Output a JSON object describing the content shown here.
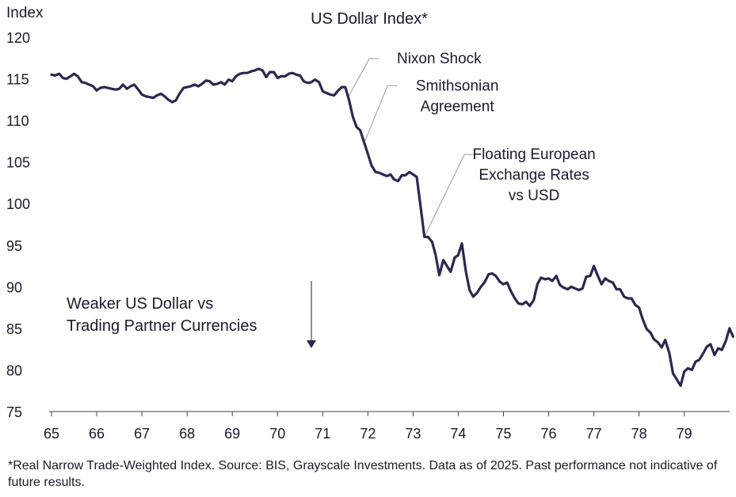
{
  "chart_data": {
    "type": "line",
    "title": "US Dollar Index*",
    "ylabel": "Index",
    "xlabel": "",
    "ylim": [
      75,
      120
    ],
    "yticks": [
      75,
      80,
      85,
      90,
      95,
      100,
      105,
      110,
      115,
      120
    ],
    "xlim": [
      1965,
      1980
    ],
    "xticks": [
      {
        "value": 1965,
        "label": "65"
      },
      {
        "value": 1966,
        "label": "66"
      },
      {
        "value": 1967,
        "label": "67"
      },
      {
        "value": 1968,
        "label": "68"
      },
      {
        "value": 1969,
        "label": "69"
      },
      {
        "value": 1970,
        "label": "70"
      },
      {
        "value": 1971,
        "label": "71"
      },
      {
        "value": 1972,
        "label": "72"
      },
      {
        "value": 1973,
        "label": "73"
      },
      {
        "value": 1974,
        "label": "74"
      },
      {
        "value": 1975,
        "label": "75"
      },
      {
        "value": 1976,
        "label": "76"
      },
      {
        "value": 1977,
        "label": "77"
      },
      {
        "value": 1978,
        "label": "78"
      },
      {
        "value": 1979,
        "label": "79"
      }
    ],
    "grid": false,
    "line_color": "#2b2850",
    "series": [
      {
        "points": [
          [
            1965.0,
            115.5
          ],
          [
            1965.08,
            115.4
          ],
          [
            1965.17,
            115.6
          ],
          [
            1965.25,
            115.1
          ],
          [
            1965.33,
            115.0
          ],
          [
            1965.42,
            115.3
          ],
          [
            1965.5,
            115.6
          ],
          [
            1965.58,
            115.3
          ],
          [
            1965.67,
            114.6
          ],
          [
            1965.75,
            114.5
          ],
          [
            1965.83,
            114.3
          ],
          [
            1965.92,
            114.1
          ],
          [
            1966.0,
            113.6
          ],
          [
            1966.08,
            113.9
          ],
          [
            1966.17,
            114.0
          ],
          [
            1966.25,
            113.9
          ],
          [
            1966.33,
            113.8
          ],
          [
            1966.42,
            113.7
          ],
          [
            1966.5,
            113.8
          ],
          [
            1966.58,
            114.3
          ],
          [
            1966.67,
            113.8
          ],
          [
            1966.75,
            114.1
          ],
          [
            1966.83,
            114.3
          ],
          [
            1966.92,
            113.7
          ],
          [
            1967.0,
            113.1
          ],
          [
            1967.08,
            112.9
          ],
          [
            1967.17,
            112.8
          ],
          [
            1967.25,
            112.7
          ],
          [
            1967.33,
            113.0
          ],
          [
            1967.42,
            113.2
          ],
          [
            1967.5,
            112.9
          ],
          [
            1967.58,
            112.5
          ],
          [
            1967.67,
            112.2
          ],
          [
            1967.75,
            112.4
          ],
          [
            1967.83,
            113.2
          ],
          [
            1967.92,
            113.9
          ],
          [
            1968.0,
            114.0
          ],
          [
            1968.08,
            114.1
          ],
          [
            1968.17,
            114.3
          ],
          [
            1968.25,
            114.1
          ],
          [
            1968.33,
            114.4
          ],
          [
            1968.42,
            114.8
          ],
          [
            1968.5,
            114.7
          ],
          [
            1968.58,
            114.3
          ],
          [
            1968.67,
            114.4
          ],
          [
            1968.75,
            114.6
          ],
          [
            1968.83,
            114.3
          ],
          [
            1968.92,
            114.9
          ],
          [
            1969.0,
            114.7
          ],
          [
            1969.08,
            115.3
          ],
          [
            1969.17,
            115.6
          ],
          [
            1969.25,
            115.7
          ],
          [
            1969.33,
            115.7
          ],
          [
            1969.42,
            115.9
          ],
          [
            1969.5,
            116.0
          ],
          [
            1969.58,
            116.2
          ],
          [
            1969.67,
            116.0
          ],
          [
            1969.75,
            115.2
          ],
          [
            1969.83,
            115.8
          ],
          [
            1969.92,
            115.8
          ],
          [
            1970.0,
            115.1
          ],
          [
            1970.08,
            115.3
          ],
          [
            1970.17,
            115.3
          ],
          [
            1970.25,
            115.6
          ],
          [
            1970.33,
            115.7
          ],
          [
            1970.42,
            115.5
          ],
          [
            1970.5,
            115.4
          ],
          [
            1970.58,
            114.7
          ],
          [
            1970.67,
            114.5
          ],
          [
            1970.75,
            114.6
          ],
          [
            1970.83,
            114.9
          ],
          [
            1970.92,
            114.6
          ],
          [
            1971.0,
            113.5
          ],
          [
            1971.08,
            113.3
          ],
          [
            1971.17,
            113.1
          ],
          [
            1971.25,
            113.0
          ],
          [
            1971.33,
            113.5
          ],
          [
            1971.42,
            114.0
          ],
          [
            1971.5,
            114.0
          ],
          [
            1971.58,
            112.5
          ],
          [
            1971.67,
            110.4
          ],
          [
            1971.75,
            109.2
          ],
          [
            1971.83,
            108.8
          ],
          [
            1971.92,
            107.3
          ],
          [
            1972.0,
            106.0
          ],
          [
            1972.08,
            104.6
          ],
          [
            1972.17,
            103.8
          ],
          [
            1972.25,
            103.7
          ],
          [
            1972.33,
            103.5
          ],
          [
            1972.42,
            103.3
          ],
          [
            1972.5,
            103.5
          ],
          [
            1972.58,
            102.9
          ],
          [
            1972.67,
            102.7
          ],
          [
            1972.75,
            103.4
          ],
          [
            1972.83,
            103.4
          ],
          [
            1972.92,
            103.8
          ],
          [
            1973.0,
            103.5
          ],
          [
            1973.08,
            103.2
          ],
          [
            1973.17,
            99.5
          ],
          [
            1973.25,
            96.0
          ],
          [
            1973.33,
            96.0
          ],
          [
            1973.42,
            95.4
          ],
          [
            1973.5,
            93.8
          ],
          [
            1973.58,
            91.4
          ],
          [
            1973.67,
            93.2
          ],
          [
            1973.75,
            92.5
          ],
          [
            1973.83,
            91.8
          ],
          [
            1973.92,
            93.5
          ],
          [
            1974.0,
            93.8
          ],
          [
            1974.08,
            95.2
          ],
          [
            1974.17,
            91.8
          ],
          [
            1974.25,
            89.6
          ],
          [
            1974.33,
            88.8
          ],
          [
            1974.42,
            89.3
          ],
          [
            1974.5,
            90.0
          ],
          [
            1974.58,
            90.5
          ],
          [
            1974.67,
            91.5
          ],
          [
            1974.75,
            91.6
          ],
          [
            1974.83,
            91.3
          ],
          [
            1974.92,
            90.6
          ],
          [
            1975.0,
            90.3
          ],
          [
            1975.08,
            90.5
          ],
          [
            1975.17,
            89.4
          ],
          [
            1975.25,
            88.6
          ],
          [
            1975.33,
            88.0
          ],
          [
            1975.42,
            87.9
          ],
          [
            1975.5,
            88.2
          ],
          [
            1975.58,
            87.7
          ],
          [
            1975.67,
            88.4
          ],
          [
            1975.75,
            90.3
          ],
          [
            1975.83,
            91.1
          ],
          [
            1975.92,
            90.9
          ],
          [
            1976.0,
            91.0
          ],
          [
            1976.08,
            90.7
          ],
          [
            1976.17,
            91.3
          ],
          [
            1976.25,
            90.2
          ],
          [
            1976.33,
            89.9
          ],
          [
            1976.42,
            89.7
          ],
          [
            1976.5,
            90.0
          ],
          [
            1976.58,
            89.8
          ],
          [
            1976.67,
            89.6
          ],
          [
            1976.75,
            89.8
          ],
          [
            1976.83,
            91.2
          ],
          [
            1976.92,
            91.3
          ],
          [
            1977.0,
            92.5
          ],
          [
            1977.08,
            91.4
          ],
          [
            1977.17,
            90.3
          ],
          [
            1977.25,
            91.0
          ],
          [
            1977.33,
            90.7
          ],
          [
            1977.42,
            90.5
          ],
          [
            1977.5,
            89.7
          ],
          [
            1977.58,
            89.7
          ],
          [
            1977.67,
            88.8
          ],
          [
            1977.75,
            88.6
          ],
          [
            1977.83,
            88.6
          ],
          [
            1977.92,
            87.8
          ],
          [
            1978.0,
            87.5
          ],
          [
            1978.08,
            86.1
          ],
          [
            1978.17,
            84.9
          ],
          [
            1978.25,
            84.5
          ],
          [
            1978.33,
            83.7
          ],
          [
            1978.42,
            83.3
          ],
          [
            1978.5,
            82.7
          ],
          [
            1978.58,
            83.6
          ],
          [
            1978.67,
            82.0
          ],
          [
            1978.75,
            79.6
          ],
          [
            1978.83,
            78.9
          ],
          [
            1978.92,
            78.1
          ],
          [
            1979.0,
            79.8
          ],
          [
            1979.08,
            80.2
          ],
          [
            1979.17,
            80.0
          ],
          [
            1979.25,
            81.0
          ],
          [
            1979.33,
            81.2
          ],
          [
            1979.42,
            82.0
          ],
          [
            1979.5,
            82.8
          ],
          [
            1979.58,
            83.1
          ],
          [
            1979.67,
            81.8
          ],
          [
            1979.75,
            82.6
          ],
          [
            1979.83,
            82.4
          ],
          [
            1979.92,
            83.5
          ],
          [
            1980.0,
            85.0
          ],
          [
            1980.08,
            84.0
          ]
        ]
      }
    ],
    "annotations": [
      {
        "label": "Nixon Shock",
        "x": 1971.58,
        "y": 113.0,
        "lines": [
          "Nixon Shock"
        ],
        "text_x": 1972.35,
        "text_y": 116.0
      },
      {
        "label": "Smithsonian Agreement",
        "x": 1971.92,
        "y": 107.3,
        "lines": [
          "Smithsonian",
          "Agreement"
        ],
        "text_x": 1972.75,
        "text_y": 111.5
      },
      {
        "label": "Floating European Exchange Rates vs USD",
        "x": 1973.25,
        "y": 96.0,
        "lines": [
          "Floating European",
          "Exchange Rates",
          "vs USD"
        ],
        "text_x": 1974.45,
        "text_y": 102.0
      }
    ],
    "callout": {
      "lines": [
        "Weaker US Dollar vs",
        "Trading Partner Currencies"
      ],
      "arrow_direction": "down"
    }
  },
  "footnote": "*Real Narrow Trade-Weighted Index. Source: BIS, Grayscale Investments. Data as of 2025. Past performance not indicative of future results."
}
